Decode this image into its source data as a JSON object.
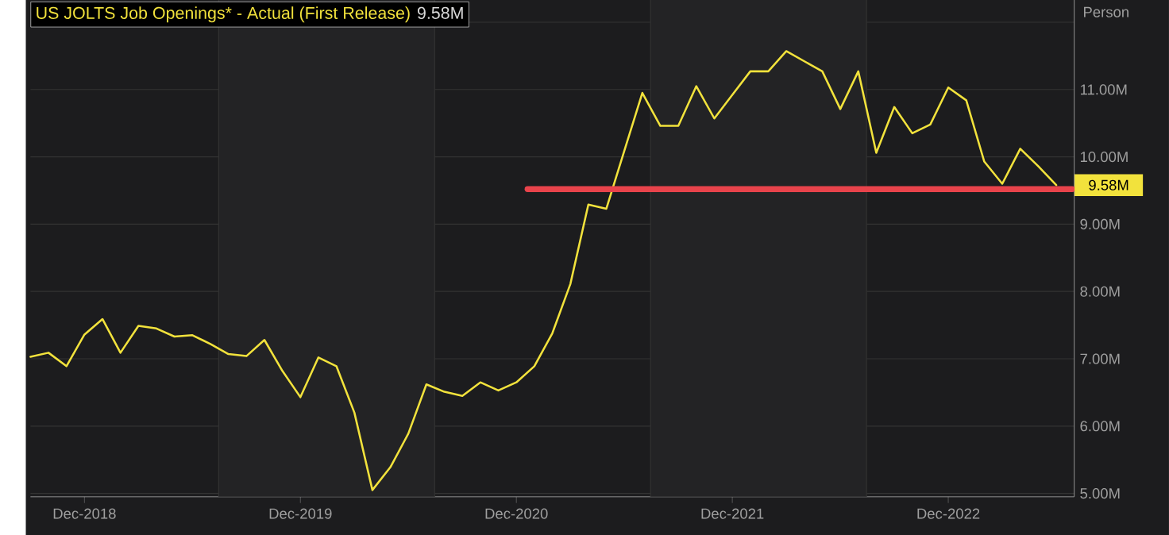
{
  "chart_data": {
    "type": "line",
    "title": "US JOLTS Job Openings* - Actual (First Release)",
    "subtitle": "9.58M",
    "ylabel": "Person",
    "grid": "y",
    "xlim": [
      "2018-09",
      "2023-07"
    ],
    "xticks": [
      {
        "value": "2018-12",
        "label": "Dec-2018"
      },
      {
        "value": "2019-12",
        "label": "Dec-2019"
      },
      {
        "value": "2020-12",
        "label": "Dec-2020"
      },
      {
        "value": "2021-12",
        "label": "Dec-2021"
      },
      {
        "value": "2022-12",
        "label": "Dec-2022"
      }
    ],
    "ylim": [
      4.95,
      12.33
    ],
    "yticks": [
      {
        "value": 5,
        "label": "5.00M"
      },
      {
        "value": 6,
        "label": "6.00M"
      },
      {
        "value": 7,
        "label": "7.00M"
      },
      {
        "value": 8,
        "label": "8.00M"
      },
      {
        "value": 9,
        "label": "9.00M"
      },
      {
        "value": 10,
        "label": "10.00M"
      },
      {
        "value": 11,
        "label": "11.00M"
      },
      {
        "value": 12,
        "label": null
      }
    ],
    "bands": [
      {
        "axis": "x",
        "from": "2019-07-15",
        "to": "2020-07-15",
        "color": "#232325"
      },
      {
        "axis": "x",
        "from": "2021-07-15",
        "to": "2022-07-15",
        "color": "#232325"
      }
    ],
    "annotations": [
      {
        "text": "9.58M",
        "x": "2023-06",
        "y": 9.58
      }
    ],
    "series": [
      {
        "color": "#f2e23c",
        "x": [
          "2018-09",
          "2018-10",
          "2018-11",
          "2018-12",
          "2019-01",
          "2019-02",
          "2019-03",
          "2019-04",
          "2019-05",
          "2019-06",
          "2019-07",
          "2019-08",
          "2019-09",
          "2019-10",
          "2019-11",
          "2019-12",
          "2020-01",
          "2020-02",
          "2020-03",
          "2020-04",
          "2020-05",
          "2020-06",
          "2020-07",
          "2020-08",
          "2020-09",
          "2020-10",
          "2020-11",
          "2020-12",
          "2021-01",
          "2021-02",
          "2021-03",
          "2021-04",
          "2021-05",
          "2021-06",
          "2021-07",
          "2021-08",
          "2021-09",
          "2021-10",
          "2021-11",
          "2021-12",
          "2022-01",
          "2022-02",
          "2022-03",
          "2022-04",
          "2022-05",
          "2022-06",
          "2022-07",
          "2022-08",
          "2022-09",
          "2022-10",
          "2022-11",
          "2022-12",
          "2023-01",
          "2023-02",
          "2023-03",
          "2023-04",
          "2023-05",
          "2023-06"
        ],
        "values": [
          7.03,
          7.09,
          6.89,
          7.36,
          7.59,
          7.09,
          7.49,
          7.45,
          7.33,
          7.35,
          7.22,
          7.07,
          7.04,
          7.28,
          6.82,
          6.43,
          7.02,
          6.89,
          6.2,
          5.05,
          5.39,
          5.89,
          6.62,
          6.51,
          6.45,
          6.65,
          6.53,
          6.65,
          6.89,
          7.38,
          8.11,
          9.29,
          9.23,
          10.09,
          10.95,
          10.46,
          10.46,
          11.05,
          10.57,
          10.92,
          11.27,
          11.27,
          11.57,
          11.42,
          11.27,
          10.71,
          11.27,
          10.06,
          10.74,
          10.35,
          10.48,
          11.03,
          10.84,
          9.93,
          9.6,
          10.12,
          9.86,
          9.58
        ]
      },
      {
        "type": "line",
        "color": "#e8434b",
        "x": [
          "2020-12-20",
          "2023-06-28"
        ],
        "values": [
          9.52,
          9.52
        ]
      }
    ]
  }
}
